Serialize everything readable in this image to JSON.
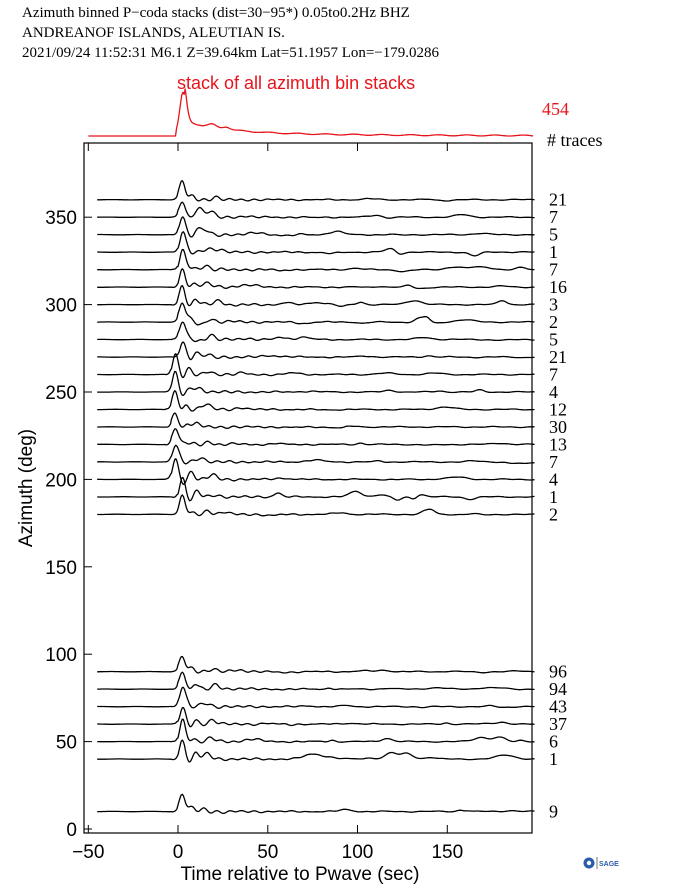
{
  "header": {
    "line1": "Azimuth binned P−coda stacks (dist=30−95*)  0.05to0.2Hz  BHZ",
    "line2": "ANDREANOF ISLANDS, ALEUTIAN IS.",
    "line3": "2021/09/24  11:52:31  M6.1  Z=39.64km Lat=51.1957 Lon=−179.0286"
  },
  "stack_label": "stack of all azimuth bin stacks",
  "stack_count": "454",
  "traces_label": "# traces",
  "logo_text": "SAGE",
  "colors": {
    "stack": "#e8141c",
    "trace": "#000000"
  },
  "chart_data": {
    "type": "line",
    "xlabel": "Time relative to Pwave (sec)",
    "ylabel": "Azimuth (deg)",
    "xlim": [
      -50,
      200
    ],
    "ylim": [
      0,
      385
    ],
    "x_ticks": [
      -50,
      0,
      50,
      100,
      150
    ],
    "x_tick_labels": [
      "−50",
      "0",
      "50",
      "100",
      "150"
    ],
    "y_ticks": [
      0,
      50,
      100,
      150,
      200,
      250,
      300,
      350
    ],
    "y_tick_labels": [
      "0",
      "50",
      "100",
      "150",
      "200",
      "250",
      "300",
      "350"
    ],
    "grid": false,
    "series": [
      {
        "azimuth": 360,
        "count": "21"
      },
      {
        "azimuth": 350,
        "count": "7"
      },
      {
        "azimuth": 340,
        "count": "5"
      },
      {
        "azimuth": 330,
        "count": "1"
      },
      {
        "azimuth": 320,
        "count": "7"
      },
      {
        "azimuth": 310,
        "count": "16"
      },
      {
        "azimuth": 300,
        "count": "3"
      },
      {
        "azimuth": 290,
        "count": "2"
      },
      {
        "azimuth": 280,
        "count": "5"
      },
      {
        "azimuth": 270,
        "count": "21"
      },
      {
        "azimuth": 260,
        "count": "7"
      },
      {
        "azimuth": 250,
        "count": "4"
      },
      {
        "azimuth": 240,
        "count": "12"
      },
      {
        "azimuth": 230,
        "count": "30"
      },
      {
        "azimuth": 220,
        "count": "13"
      },
      {
        "azimuth": 210,
        "count": "7"
      },
      {
        "azimuth": 200,
        "count": "4"
      },
      {
        "azimuth": 190,
        "count": "1"
      },
      {
        "azimuth": 180,
        "count": "2"
      },
      {
        "azimuth": 90,
        "count": "96"
      },
      {
        "azimuth": 80,
        "count": "94"
      },
      {
        "azimuth": 70,
        "count": "43"
      },
      {
        "azimuth": 60,
        "count": "37"
      },
      {
        "azimuth": 50,
        "count": "6"
      },
      {
        "azimuth": 40,
        "count": "1"
      },
      {
        "azimuth": 10,
        "count": "9"
      }
    ]
  }
}
